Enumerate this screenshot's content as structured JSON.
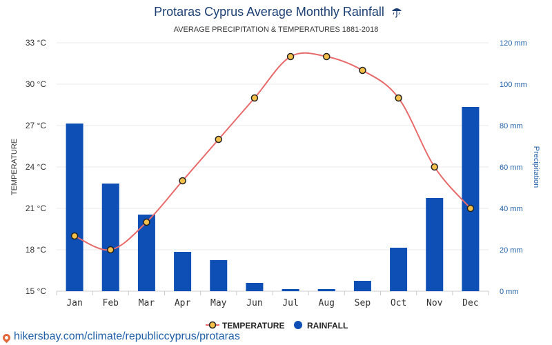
{
  "title": "Protaras Cyprus Average Monthly Rainfall",
  "title_icon": "umbrella-rain-icon",
  "subtitle": "AVERAGE PRECIPITATION & TEMPERATURES 1881-2018",
  "left_axis_label": "TEMPERATURE",
  "right_axis_label": "Precipitation",
  "footer_url": "hikersbay.com/climate/republiccyprus/protaras",
  "colors": {
    "bar": "#0e4fb5",
    "line": "#e86a6a",
    "marker_fill": "#f5c04a",
    "marker_stroke": "#222222",
    "title": "#1b3f73",
    "right_axis": "#1f5fa8"
  },
  "chart_data": {
    "type": "bar+line",
    "categories": [
      "Jan",
      "Feb",
      "Mar",
      "Apr",
      "May",
      "Jun",
      "Jul",
      "Aug",
      "Sep",
      "Oct",
      "Nov",
      "Dec"
    ],
    "series": [
      {
        "name": "TEMPERATURE",
        "type": "line",
        "axis": "left",
        "values": [
          19,
          18,
          20,
          23,
          26,
          29,
          32,
          32,
          31,
          29,
          24,
          21
        ]
      },
      {
        "name": "RAINFALL",
        "type": "bar",
        "axis": "right",
        "values": [
          81,
          52,
          37,
          19,
          15,
          4,
          1,
          1,
          5,
          21,
          45,
          89
        ]
      }
    ],
    "left_axis": {
      "label": "TEMPERATURE",
      "ylim": [
        15,
        33
      ],
      "ticks": [
        15,
        18,
        21,
        24,
        27,
        30,
        33
      ],
      "tick_labels": [
        "15 °C",
        "18 °C",
        "21 °C",
        "24 °C",
        "27 °C",
        "30 °C",
        "33 °C"
      ]
    },
    "right_axis": {
      "label": "Precipitation",
      "ylim": [
        0,
        120
      ],
      "ticks": [
        0,
        20,
        40,
        60,
        80,
        100,
        120
      ],
      "tick_labels": [
        "0 mm",
        "20 mm",
        "40 mm",
        "60 mm",
        "80 mm",
        "100 mm",
        "120 mm"
      ]
    },
    "legend": {
      "position": "bottom-center",
      "entries": [
        "TEMPERATURE",
        "RAINFALL"
      ]
    },
    "grid": true
  }
}
